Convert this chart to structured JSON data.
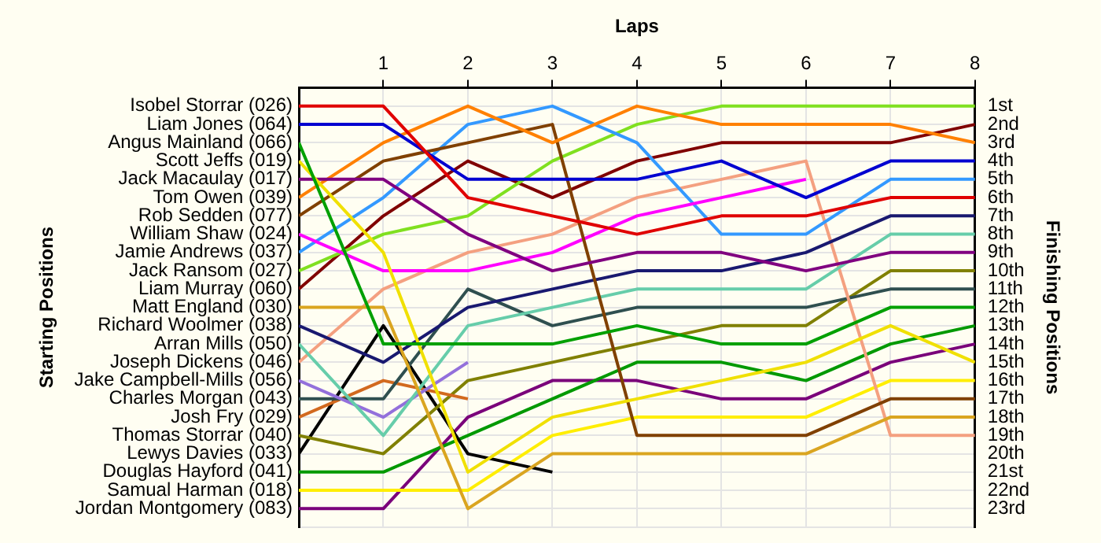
{
  "chart_data": {
    "type": "line",
    "xlabel": "Laps",
    "ylabel": "Finishing Positions",
    "annotations": [
      "Starting Positions"
    ],
    "x": [
      0,
      1,
      2,
      3,
      4,
      5,
      6,
      7,
      8
    ],
    "xlim": [
      0,
      8
    ],
    "xticks": [
      1,
      2,
      3,
      4,
      5,
      6,
      7,
      8
    ],
    "ylim": [
      24,
      0
    ],
    "yticks": [
      {
        "value": 0,
        "label": null
      },
      {
        "value": 1,
        "label": "1st"
      },
      {
        "value": 2,
        "label": "2nd"
      },
      {
        "value": 3,
        "label": "3rd"
      },
      {
        "value": 4,
        "label": "4th"
      },
      {
        "value": 5,
        "label": "5th"
      },
      {
        "value": 6,
        "label": "6th"
      },
      {
        "value": 7,
        "label": "7th"
      },
      {
        "value": 8,
        "label": "8th"
      },
      {
        "value": 9,
        "label": "9th"
      },
      {
        "value": 10,
        "label": "10th"
      },
      {
        "value": 11,
        "label": "11th"
      },
      {
        "value": 12,
        "label": "12th"
      },
      {
        "value": 13,
        "label": "13th"
      },
      {
        "value": 14,
        "label": "14th"
      },
      {
        "value": 15,
        "label": "15th"
      },
      {
        "value": 16,
        "label": "16th"
      },
      {
        "value": 17,
        "label": "17th"
      },
      {
        "value": 18,
        "label": "18th"
      },
      {
        "value": 19,
        "label": "19th"
      },
      {
        "value": 20,
        "label": "20th"
      },
      {
        "value": 21,
        "label": "21st"
      },
      {
        "value": 22,
        "label": "22nd"
      },
      {
        "value": 23,
        "label": "23rd"
      },
      {
        "value": 24,
        "label": null
      }
    ],
    "grid": true,
    "legend": false,
    "marker": "none",
    "series": [
      {
        "name": "Isobel Storrar (026)",
        "color": "#e00000",
        "values": [
          1,
          1,
          6,
          7,
          8,
          7,
          7,
          6,
          6
        ]
      },
      {
        "name": "Liam Jones (064)",
        "color": "#0000d0",
        "values": [
          2,
          2,
          5,
          5,
          5,
          4,
          6,
          4,
          4
        ]
      },
      {
        "name": "Angus Mainland (066)",
        "color": "#00a000",
        "values": [
          3,
          14,
          14,
          14,
          13,
          14,
          14,
          12,
          12
        ]
      },
      {
        "name": "Scott Jeffs (019)",
        "color": "#f0e000",
        "values": [
          4,
          9,
          21,
          18,
          17,
          16,
          15,
          13,
          15
        ]
      },
      {
        "name": "Jack Macaulay (017)",
        "color": "#800080",
        "values": [
          5,
          5,
          8,
          10,
          9,
          9,
          10,
          9,
          9
        ]
      },
      {
        "name": "Tom Owen (039)",
        "color": "#ff8000",
        "values": [
          6,
          3,
          1,
          3,
          1,
          2,
          2,
          2,
          3
        ]
      },
      {
        "name": "Rob Sedden (077)",
        "color": "#804000",
        "values": [
          7,
          4,
          3,
          2,
          19,
          19,
          19,
          17,
          17
        ]
      },
      {
        "name": "William Shaw (024)",
        "color": "#ff00ff",
        "values": [
          8,
          10,
          10,
          9,
          7,
          6,
          5,
          null,
          null
        ]
      },
      {
        "name": "Jamie Andrews (037)",
        "color": "#3399ff",
        "values": [
          9,
          6,
          2,
          1,
          3,
          8,
          8,
          5,
          5
        ]
      },
      {
        "name": "Jack Ransom (027)",
        "color": "#80e020",
        "values": [
          10,
          8,
          7,
          4,
          2,
          1,
          1,
          1,
          1
        ]
      },
      {
        "name": "Liam Murray (060)",
        "color": "#800000",
        "values": [
          11,
          7,
          4,
          6,
          4,
          3,
          3,
          3,
          2
        ]
      },
      {
        "name": "Matt England (030)",
        "color": "#daa520",
        "values": [
          12,
          12,
          23,
          20,
          20,
          20,
          20,
          18,
          18
        ]
      },
      {
        "name": "Richard Woolmer (038)",
        "color": "#191970",
        "values": [
          13,
          15,
          12,
          11,
          10,
          10,
          9,
          7,
          7
        ]
      },
      {
        "name": "Arran Mills (050)",
        "color": "#66cdaa",
        "values": [
          14,
          19,
          13,
          12,
          11,
          11,
          11,
          8,
          8
        ]
      },
      {
        "name": "Joseph Dickens (046)",
        "color": "#f4a080",
        "values": [
          15,
          11,
          9,
          8,
          6,
          5,
          4,
          19,
          19
        ]
      },
      {
        "name": "Jake Campbell-Mills (056)",
        "color": "#9370db",
        "values": [
          16,
          18,
          15,
          null,
          null,
          null,
          null,
          null,
          null
        ]
      },
      {
        "name": "Charles Morgan (043)",
        "color": "#2f4f4f",
        "values": [
          17,
          17,
          11,
          13,
          12,
          12,
          12,
          11,
          11
        ]
      },
      {
        "name": "Josh Fry (029)",
        "color": "#d2691e",
        "values": [
          18,
          16,
          17,
          null,
          null,
          null,
          null,
          null,
          null
        ]
      },
      {
        "name": "Thomas Storrar (040)",
        "color": "#808000",
        "values": [
          19,
          20,
          16,
          15,
          14,
          13,
          13,
          10,
          10
        ]
      },
      {
        "name": "Lewys Davies (033)",
        "color": "#000000",
        "values": [
          20,
          13,
          20,
          21,
          null,
          null,
          null,
          null,
          null
        ]
      },
      {
        "name": "Douglas Hayford (041)",
        "color": "#009900",
        "values": [
          21,
          21,
          19,
          17,
          15,
          15,
          16,
          14,
          13
        ]
      },
      {
        "name": "Samual Harman (018)",
        "color": "#ffee00",
        "values": [
          22,
          22,
          22,
          19,
          18,
          18,
          18,
          16,
          16
        ]
      },
      {
        "name": "Jordan Montgomery (083)",
        "color": "#7a007a",
        "values": [
          23,
          23,
          18,
          16,
          16,
          17,
          17,
          15,
          14
        ]
      }
    ]
  }
}
